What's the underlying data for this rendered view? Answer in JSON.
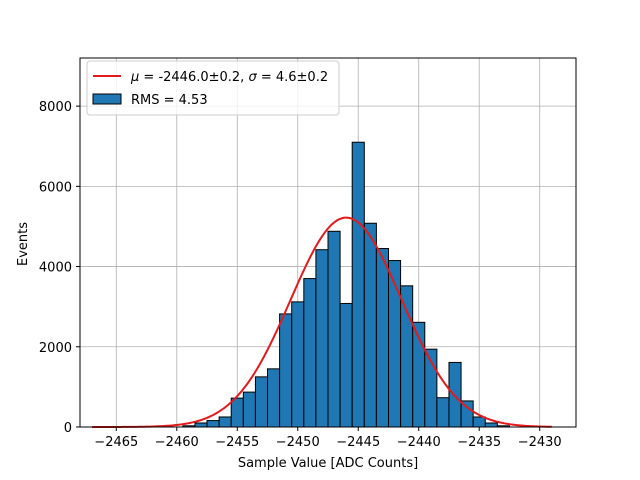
{
  "chart_data": {
    "type": "bar",
    "xlabel": "Sample Value [ADC Counts]",
    "ylabel": "Events",
    "xlim": [
      -2468.0,
      -2427.0
    ],
    "ylim": [
      0,
      9200
    ],
    "xticks": [
      -2465,
      -2460,
      -2455,
      -2450,
      -2445,
      -2440,
      -2435,
      -2430
    ],
    "xtick_labels": [
      "−2465",
      "−2460",
      "−2455",
      "−2450",
      "−2445",
      "−2440",
      "−2435",
      "−2430"
    ],
    "yticks": [
      0,
      2000,
      4000,
      6000,
      8000
    ],
    "ytick_labels": [
      "0",
      "2000",
      "4000",
      "6000",
      "8000"
    ],
    "grid": true,
    "legend_position": "upper-left",
    "bar_color": "#1f77b4",
    "fit_color": "#e41a1c",
    "bin_width": 1.0,
    "histogram": {
      "name": "RMS = 4.53",
      "bin_centers": [
        -2459,
        -2458,
        -2457,
        -2456,
        -2455,
        -2454,
        -2453,
        -2452,
        -2451,
        -2450,
        -2449,
        -2448,
        -2447,
        -2446,
        -2445,
        -2444,
        -2443,
        -2442,
        -2441,
        -2440,
        -2439,
        -2438,
        -2437,
        -2436,
        -2435,
        -2434,
        -2433
      ],
      "counts": [
        30,
        100,
        160,
        250,
        720,
        870,
        1250,
        1450,
        2820,
        3120,
        3700,
        4420,
        4880,
        3080,
        7100,
        5080,
        4450,
        4150,
        3520,
        2610,
        1940,
        730,
        1610,
        650,
        250,
        100,
        30
      ]
    },
    "fit": {
      "name": "Gaussian fit",
      "legend_label": "μ = -2446.0±0.2, σ = 4.6±0.2",
      "mu": -2446.0,
      "sigma": 4.6,
      "amplitude": 5220,
      "x_range": [
        -2467,
        -2429
      ]
    }
  },
  "legend": {
    "fit_mu_symbol": "μ",
    "fit_mu_text": " = -2446.0±0.2, ",
    "fit_sigma_symbol": "σ",
    "fit_sigma_text": " = 4.6±0.2",
    "hist_label": "RMS = 4.53"
  }
}
